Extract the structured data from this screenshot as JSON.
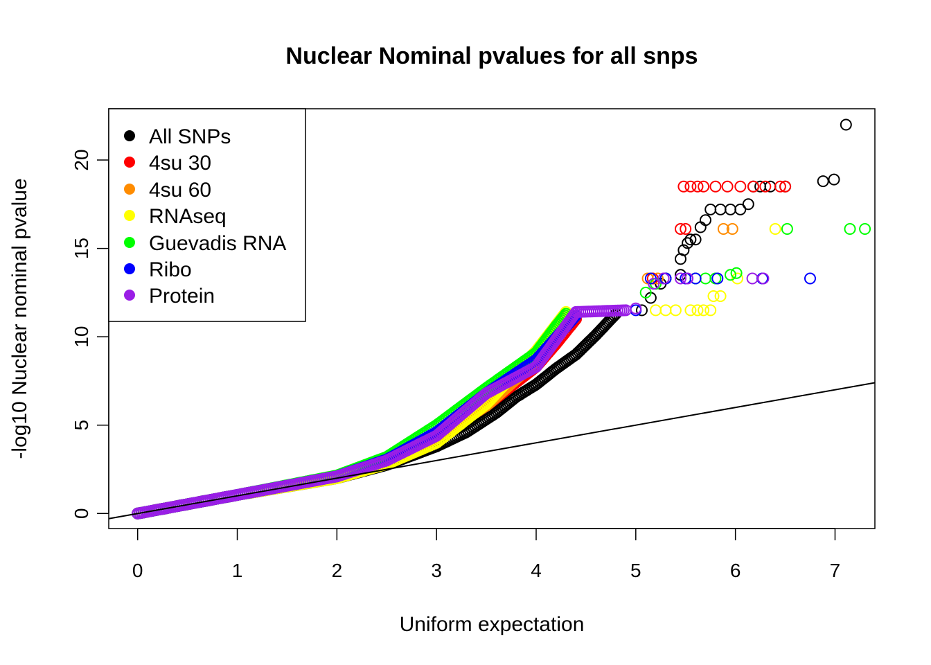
{
  "chart_data": {
    "type": "scatter",
    "title": "Nuclear Nominal pvalues for all snps",
    "xlabel": "Uniform expectation",
    "ylabel": "-log10 Nuclear nominal pvalue",
    "xlim": [
      -0.29,
      7.4
    ],
    "ylim": [
      -0.85,
      22.9
    ],
    "x_ticks": [
      "0",
      "1",
      "2",
      "3",
      "4",
      "5",
      "6",
      "7"
    ],
    "y_ticks": [
      "0",
      "5",
      "10",
      "15",
      "20"
    ],
    "reference_line": {
      "type": "y=x",
      "color": "#000000"
    },
    "legend": {
      "position": "top-left",
      "box": true
    },
    "series": [
      {
        "name": "All SNPs",
        "color": "#000000",
        "curve": [
          [
            0,
            0
          ],
          [
            1,
            1.05
          ],
          [
            2,
            2.0
          ],
          [
            2.5,
            2.75
          ],
          [
            3,
            3.8
          ],
          [
            3.3,
            4.6
          ],
          [
            3.6,
            5.7
          ],
          [
            3.8,
            6.6
          ],
          [
            4.0,
            7.3
          ],
          [
            4.2,
            8.2
          ],
          [
            4.4,
            9.0
          ],
          [
            4.6,
            10.1
          ],
          [
            4.8,
            11.3
          ]
        ],
        "tail": [
          [
            5.06,
            11.5
          ],
          [
            5.15,
            12.2
          ],
          [
            5.25,
            13.0
          ],
          [
            5.3,
            13.3
          ],
          [
            5.45,
            13.5
          ],
          [
            5.45,
            14.4
          ],
          [
            5.48,
            14.9
          ],
          [
            5.52,
            15.3
          ],
          [
            5.55,
            15.5
          ],
          [
            5.6,
            15.5
          ],
          [
            5.65,
            16.2
          ],
          [
            5.7,
            16.6
          ],
          [
            5.75,
            17.2
          ],
          [
            5.85,
            17.2
          ],
          [
            5.95,
            17.2
          ],
          [
            6.05,
            17.2
          ],
          [
            6.13,
            17.5
          ],
          [
            6.18,
            18.5
          ],
          [
            6.25,
            18.5
          ],
          [
            6.35,
            18.5
          ],
          [
            6.5,
            18.5
          ],
          [
            6.88,
            18.8
          ],
          [
            6.99,
            18.9
          ],
          [
            7.11,
            22.0
          ]
        ]
      },
      {
        "name": "4su 30",
        "color": "#ff0000",
        "curve": [
          [
            0,
            0
          ],
          [
            1,
            1.05
          ],
          [
            2,
            2.1
          ],
          [
            2.5,
            3.0
          ],
          [
            3,
            4.3
          ],
          [
            3.5,
            6.1
          ],
          [
            4.0,
            8.3
          ],
          [
            4.2,
            9.6
          ],
          [
            4.4,
            11.0
          ]
        ],
        "tail": [
          [
            5.17,
            13.3
          ],
          [
            5.45,
            16.1
          ],
          [
            5.5,
            16.1
          ],
          [
            5.48,
            18.5
          ],
          [
            5.55,
            18.5
          ],
          [
            5.62,
            18.5
          ],
          [
            5.68,
            18.5
          ],
          [
            5.8,
            18.5
          ],
          [
            5.92,
            18.5
          ],
          [
            6.05,
            18.5
          ],
          [
            6.18,
            18.5
          ],
          [
            6.3,
            18.5
          ],
          [
            6.45,
            18.5
          ],
          [
            6.5,
            18.5
          ]
        ]
      },
      {
        "name": "4su 60",
        "color": "#ff8c00",
        "curve": [
          [
            0,
            0
          ],
          [
            1,
            1.05
          ],
          [
            2,
            2.1
          ],
          [
            2.5,
            3.0
          ],
          [
            3,
            4.3
          ],
          [
            3.5,
            6.1
          ],
          [
            4.0,
            8.6
          ],
          [
            4.3,
            11.3
          ]
        ],
        "tail": [
          [
            5.12,
            13.3
          ],
          [
            5.22,
            13.3
          ],
          [
            5.88,
            16.1
          ],
          [
            5.97,
            16.1
          ]
        ]
      },
      {
        "name": "RNAseq",
        "color": "#ffff00",
        "curve": [
          [
            0,
            0
          ],
          [
            1,
            1.05
          ],
          [
            2,
            2.0
          ],
          [
            2.5,
            2.8
          ],
          [
            3,
            4.0
          ],
          [
            3.5,
            6.2
          ],
          [
            4.0,
            9.2
          ],
          [
            4.3,
            11.4
          ]
        ],
        "tail": [
          [
            5.2,
            11.5
          ],
          [
            5.3,
            11.5
          ],
          [
            5.4,
            11.5
          ],
          [
            5.55,
            11.5
          ],
          [
            5.62,
            11.5
          ],
          [
            5.68,
            11.5
          ],
          [
            5.75,
            11.5
          ],
          [
            5.78,
            12.3
          ],
          [
            5.85,
            12.3
          ],
          [
            6.02,
            13.3
          ],
          [
            6.4,
            16.1
          ]
        ]
      },
      {
        "name": "Guevadis RNA",
        "color": "#00ff00",
        "curve": [
          [
            0,
            0
          ],
          [
            1,
            1.05
          ],
          [
            2,
            2.15
          ],
          [
            2.5,
            3.2
          ],
          [
            3,
            5.0
          ],
          [
            3.5,
            7.1
          ],
          [
            4.0,
            9.1
          ],
          [
            4.2,
            10.6
          ],
          [
            4.3,
            11.3
          ]
        ],
        "tail": [
          [
            5.1,
            12.5
          ],
          [
            5.2,
            13.0
          ],
          [
            5.6,
            13.3
          ],
          [
            5.7,
            13.3
          ],
          [
            5.8,
            13.3
          ],
          [
            5.95,
            13.5
          ],
          [
            6.01,
            13.6
          ],
          [
            6.52,
            16.1
          ],
          [
            7.15,
            16.1
          ],
          [
            7.3,
            16.1
          ]
        ]
      },
      {
        "name": "Ribo",
        "color": "#0000ff",
        "curve": [
          [
            0,
            0
          ],
          [
            1,
            1.05
          ],
          [
            2,
            2.1
          ],
          [
            2.5,
            3.05
          ],
          [
            3,
            4.6
          ],
          [
            3.5,
            6.8
          ],
          [
            4.0,
            8.7
          ],
          [
            4.4,
            11.2
          ]
        ],
        "tail": [
          [
            5.0,
            11.5
          ],
          [
            5.15,
            13.3
          ],
          [
            5.3,
            13.3
          ],
          [
            5.5,
            13.3
          ],
          [
            5.6,
            13.3
          ],
          [
            5.82,
            13.3
          ],
          [
            6.27,
            13.3
          ],
          [
            6.75,
            13.3
          ]
        ]
      },
      {
        "name": "Protein",
        "color": "#9a1ee6",
        "curve": [
          [
            0,
            0
          ],
          [
            1,
            1.05
          ],
          [
            2,
            2.1
          ],
          [
            2.5,
            3.0
          ],
          [
            3,
            4.4
          ],
          [
            3.5,
            6.8
          ],
          [
            4.0,
            8.3
          ],
          [
            4.4,
            11.4
          ],
          [
            4.9,
            11.5
          ]
        ],
        "tail": [
          [
            5.0,
            11.6
          ],
          [
            5.18,
            13.0
          ],
          [
            5.28,
            13.3
          ],
          [
            5.45,
            13.3
          ],
          [
            5.52,
            13.3
          ],
          [
            6.17,
            13.3
          ],
          [
            6.28,
            13.3
          ]
        ]
      }
    ]
  }
}
